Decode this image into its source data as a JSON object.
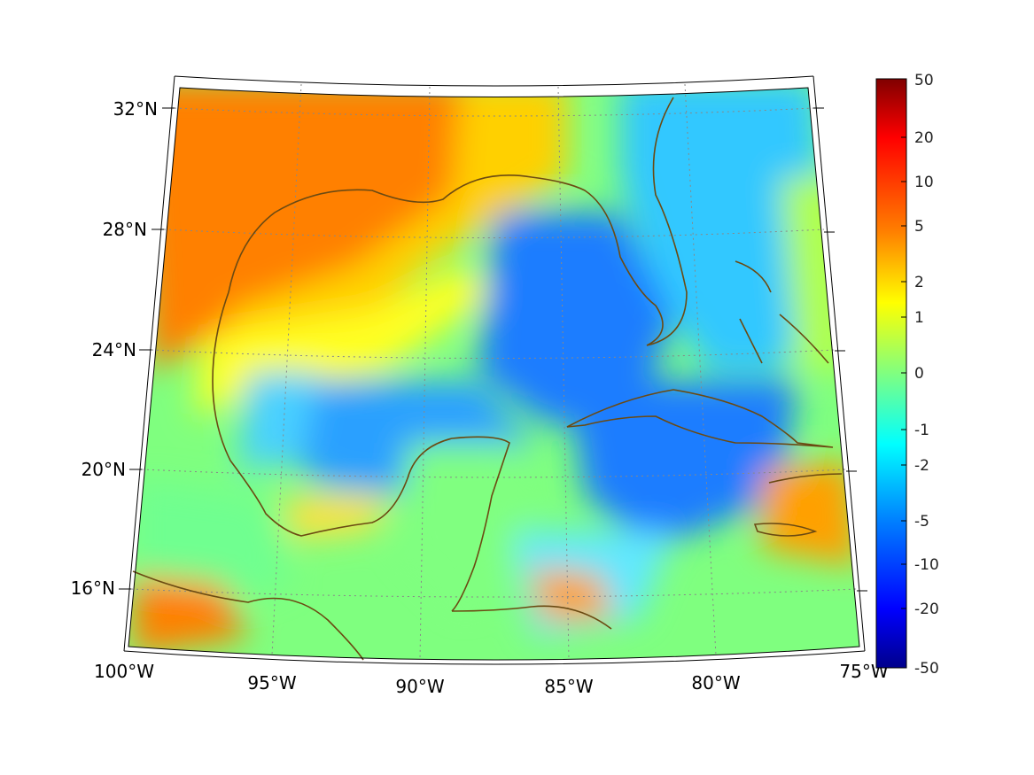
{
  "map": {
    "longitude_labels": [
      "100°W",
      "95°W",
      "90°W",
      "85°W",
      "80°W",
      "75°W"
    ],
    "latitude_labels": [
      "32°N",
      "28°N",
      "24°N",
      "20°N",
      "16°N"
    ],
    "extent": {
      "lon_min": -100,
      "lon_max": -75,
      "lat_min": 14,
      "lat_max": 33
    },
    "grid": true,
    "coastline_color": "#6b4a12"
  },
  "colorbar": {
    "tick_labels": [
      "50",
      "20",
      "10",
      "5",
      "2",
      "1",
      "0",
      "-1",
      "-2",
      "-5",
      "-10",
      "-20",
      "-50"
    ],
    "colormap": "jet",
    "colors": {
      "top": "#800000",
      "high": "#ff6a00",
      "mid_high": "#ffff00",
      "mid": "#80ff80",
      "mid_low": "#00e5ff",
      "low": "#0050ff",
      "bottom": "#00008b"
    }
  }
}
